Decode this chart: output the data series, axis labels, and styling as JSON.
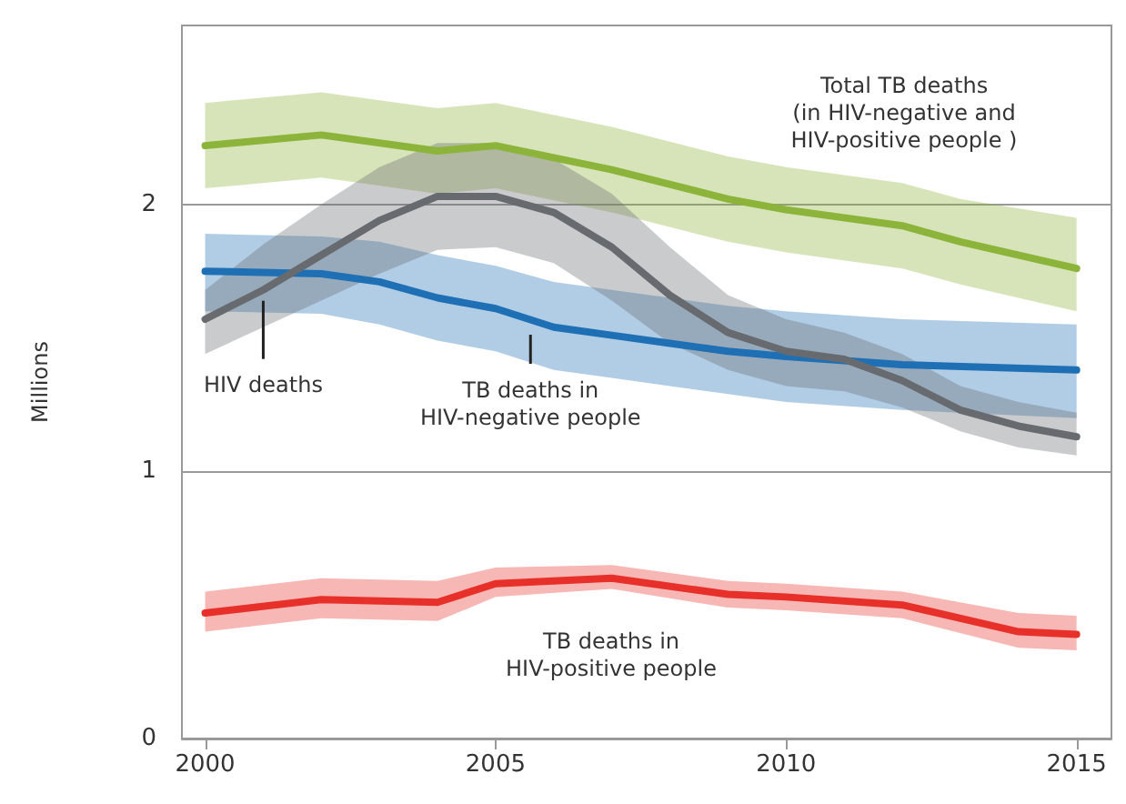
{
  "chart_data": {
    "type": "line",
    "ylabel": "Millions",
    "xlim": [
      1999.6,
      2015.6
    ],
    "xticks": [
      2000,
      2005,
      2010,
      2015
    ],
    "ylim": [
      0,
      2.67
    ],
    "yticks": [
      0,
      1,
      2
    ],
    "grid": "y",
    "series": [
      {
        "color": "#8cb33a",
        "x": [
          2000,
          2002,
          2004,
          2005,
          2007,
          2009,
          2010,
          2012,
          2013,
          2015
        ],
        "values": [
          2.22,
          2.26,
          2.2,
          2.22,
          2.13,
          2.02,
          1.98,
          1.92,
          1.86,
          1.76
        ],
        "lower": [
          2.06,
          2.1,
          2.04,
          2.06,
          1.97,
          1.86,
          1.82,
          1.76,
          1.7,
          1.6
        ],
        "upper": [
          2.38,
          2.42,
          2.36,
          2.38,
          2.29,
          2.18,
          2.14,
          2.08,
          2.02,
          1.95
        ]
      },
      {
        "color": "#1f6fb5",
        "x": [
          2000,
          2002,
          2003,
          2004,
          2005,
          2006,
          2007,
          2008,
          2009,
          2010,
          2012,
          2015
        ],
        "values": [
          1.75,
          1.74,
          1.71,
          1.65,
          1.61,
          1.54,
          1.51,
          1.48,
          1.45,
          1.43,
          1.4,
          1.38
        ],
        "lower": [
          1.6,
          1.59,
          1.55,
          1.49,
          1.45,
          1.38,
          1.35,
          1.32,
          1.29,
          1.26,
          1.23,
          1.2
        ],
        "upper": [
          1.89,
          1.88,
          1.86,
          1.81,
          1.77,
          1.71,
          1.68,
          1.65,
          1.62,
          1.6,
          1.57,
          1.55
        ]
      },
      {
        "color": "#676b70",
        "x": [
          2000,
          2001,
          2002,
          2003,
          2004,
          2005,
          2006,
          2007,
          2008,
          2009,
          2010,
          2011,
          2012,
          2013,
          2014,
          2015
        ],
        "values": [
          1.57,
          1.68,
          1.81,
          1.94,
          2.03,
          2.03,
          1.97,
          1.84,
          1.66,
          1.52,
          1.45,
          1.42,
          1.34,
          1.23,
          1.17,
          1.13
        ],
        "lower": [
          1.44,
          1.54,
          1.64,
          1.74,
          1.83,
          1.84,
          1.78,
          1.64,
          1.48,
          1.38,
          1.32,
          1.3,
          1.24,
          1.15,
          1.09,
          1.06
        ],
        "upper": [
          1.68,
          1.85,
          2.0,
          2.14,
          2.23,
          2.23,
          2.17,
          2.04,
          1.84,
          1.66,
          1.57,
          1.52,
          1.44,
          1.32,
          1.26,
          1.22
        ]
      },
      {
        "color": "#e8302a",
        "x": [
          2000,
          2002,
          2004,
          2005,
          2007,
          2009,
          2010,
          2012,
          2014,
          2015
        ],
        "values": [
          0.47,
          0.52,
          0.51,
          0.58,
          0.6,
          0.54,
          0.53,
          0.5,
          0.4,
          0.39
        ],
        "lower": [
          0.4,
          0.45,
          0.44,
          0.53,
          0.56,
          0.49,
          0.48,
          0.45,
          0.34,
          0.33
        ],
        "upper": [
          0.55,
          0.6,
          0.59,
          0.64,
          0.65,
          0.59,
          0.58,
          0.55,
          0.47,
          0.46
        ]
      }
    ],
    "annotations": [
      "Total TB deaths\n(in HIV-negative and\nHIV-positive people )",
      {
        "text": "HIV deaths",
        "x": 2001,
        "y": 1.68
      },
      {
        "text": "TB deaths in\nHIV-negative people",
        "x": 2005.6,
        "y": 1.58
      },
      "TB deaths in\nHIV-positive people"
    ]
  }
}
